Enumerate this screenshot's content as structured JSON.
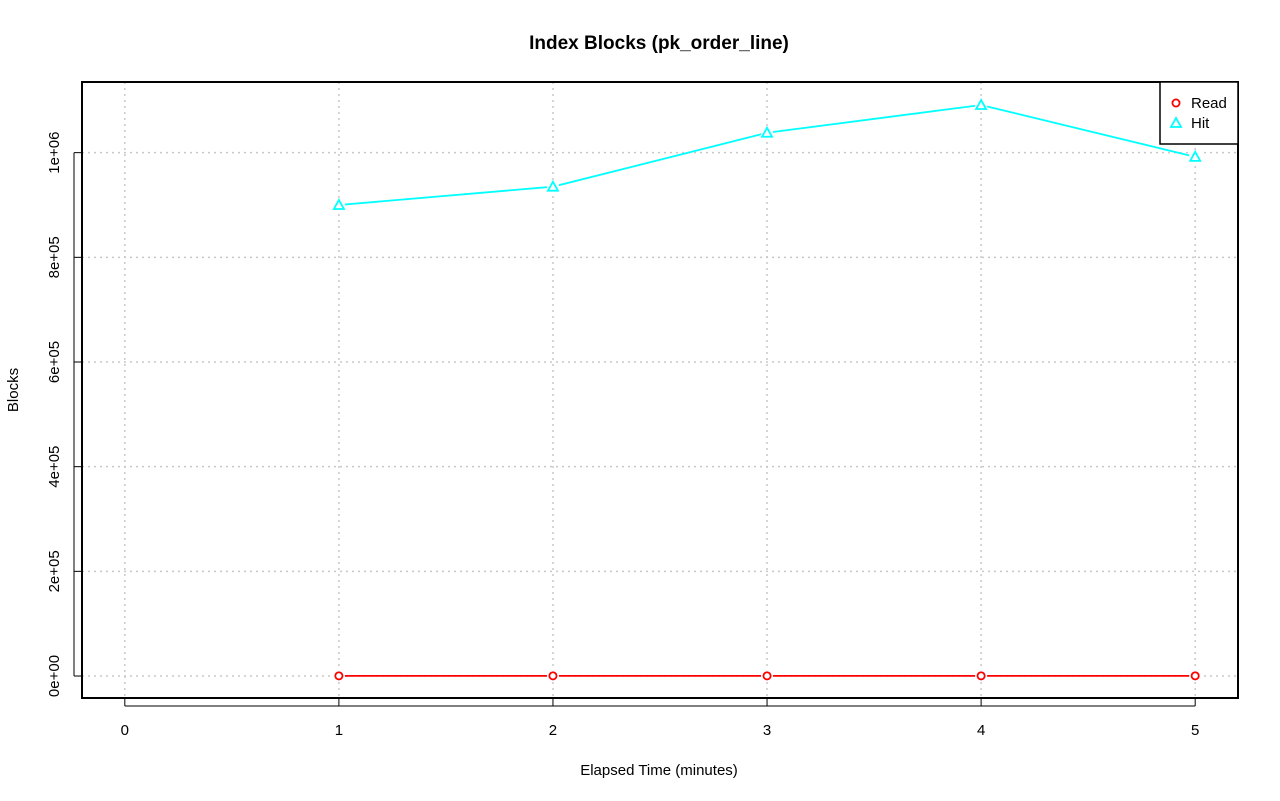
{
  "chart_data": {
    "type": "line",
    "title": "Index Blocks (pk_order_line)",
    "xlabel": "Elapsed Time (minutes)",
    "ylabel": "Blocks",
    "xlim": [
      -0.2,
      5.2
    ],
    "ylim": [
      -42000,
      1135000
    ],
    "x_ticks": [
      0,
      1,
      2,
      3,
      4,
      5
    ],
    "x_tick_labels": [
      "0",
      "1",
      "2",
      "3",
      "4",
      "5"
    ],
    "y_ticks": [
      0,
      200000,
      400000,
      600000,
      800000,
      1000000
    ],
    "y_tick_labels": [
      "0e+00",
      "2e+05",
      "4e+05",
      "6e+05",
      "8e+05",
      "1e+06"
    ],
    "grid": true,
    "legend_position": "top-right",
    "x": [
      1,
      2,
      3,
      4,
      5
    ],
    "series": [
      {
        "name": "Read",
        "color": "#ff0000",
        "marker": "circle",
        "values": [
          300,
          300,
          300,
          300,
          300
        ]
      },
      {
        "name": "Hit",
        "color": "#00ffff",
        "marker": "triangle",
        "values": [
          900000,
          935000,
          1038000,
          1091000,
          992000
        ]
      }
    ]
  }
}
